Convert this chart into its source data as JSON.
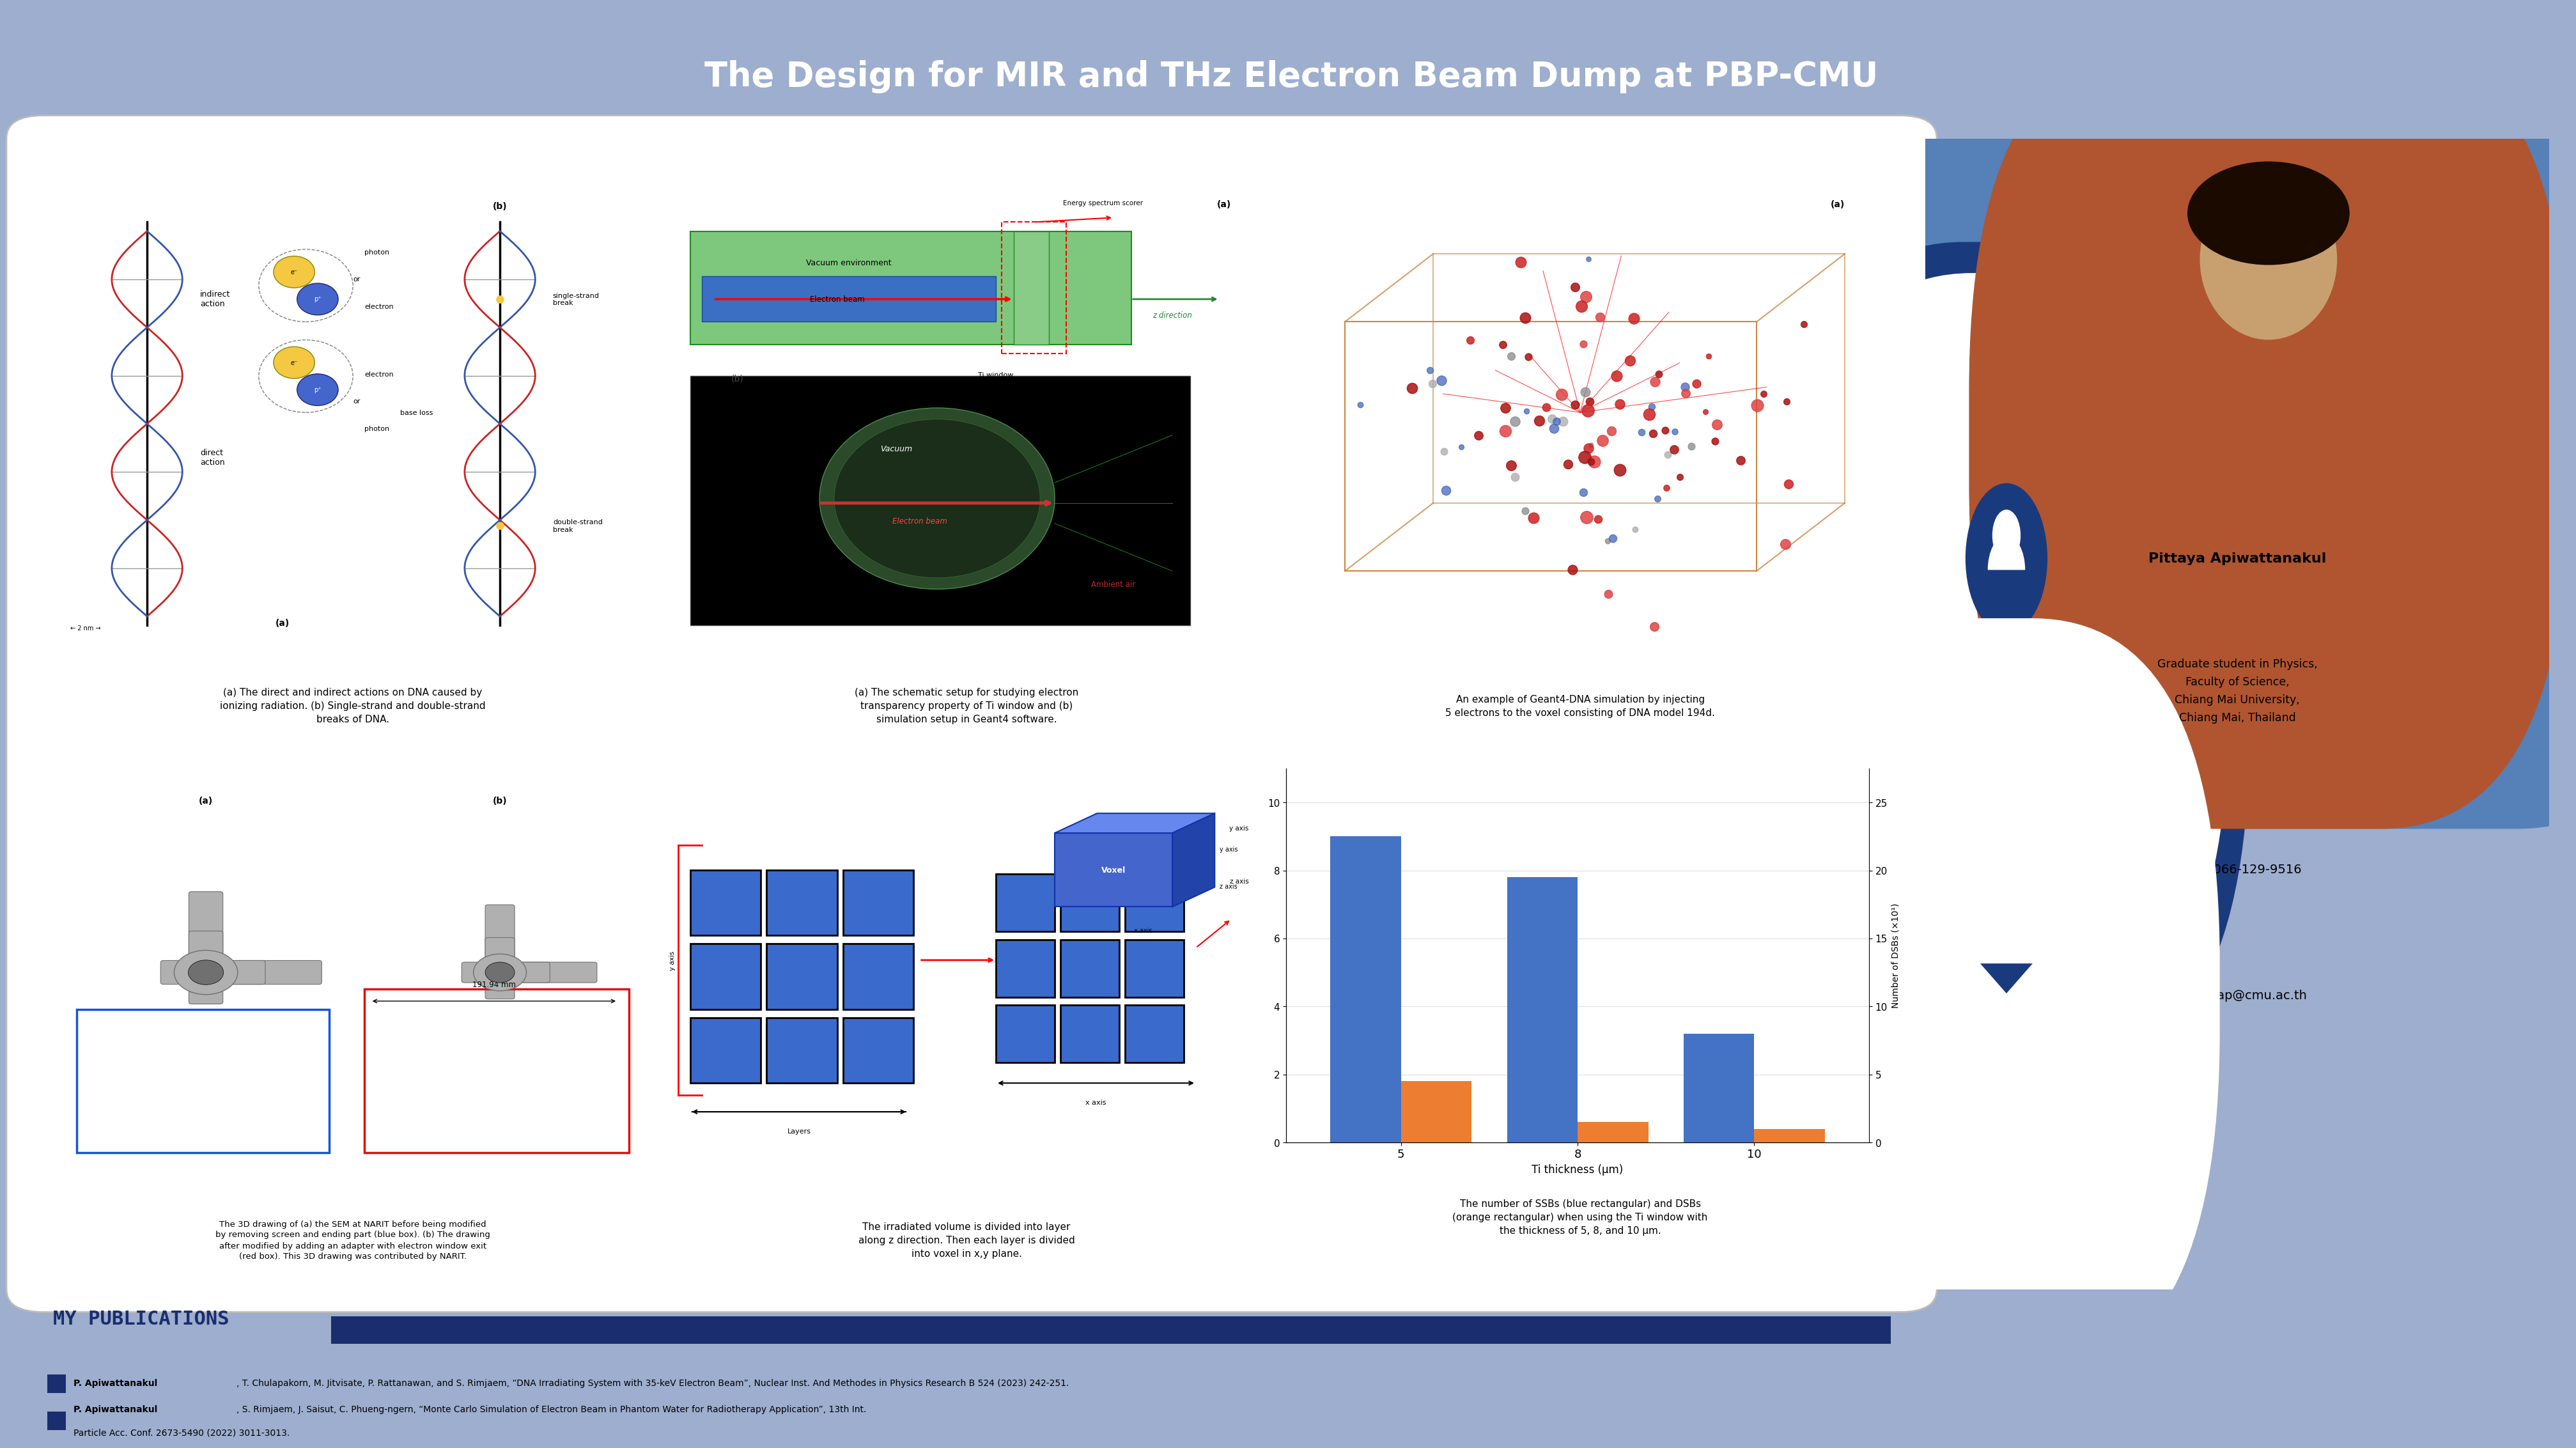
{
  "title": "The Design for MIR and THz Electron Beam Dump at PBP-CMU",
  "title_bg": "#1a2d6e",
  "title_color": "#ffffff",
  "title_fontsize": 38,
  "main_bg": "#9daece",
  "content_bg": "#ffffff",
  "sidebar_bg": "#9daece",
  "section_bar_color": "#1a2d6e",
  "publications_header": "MY PUBLICATIONS",
  "pub1_bold": "P. Apiwattanakul",
  "pub1_rest": ", T. Chulapakorn, M. Jitvisate, P. Rattanawan, and S. Rimjaem, “DNA Irradiating System with 35-keV Electron Beam”, Nuclear Inst. And Methodes in Physics Research B 524 (2023) 242-251.",
  "pub2_bold": "P. Apiwattanakul",
  "pub2_rest": ", S. Rimjaem, J. Saisut, C. Phueng-ngern, “Monte Carlo Simulation of Electron Beam in Phantom Water for Radiotherapy Application”, 13th Int.",
  "pub2_line2": "Particle Acc. Conf. 2673-5490 (2022) 3011-3013.",
  "sidebar_name": "Pittaya Apiwattanakul",
  "sidebar_role": "Graduate student in Physics,\nFaculty of Science,\nChiang Mai University,\nChiang Mai, Thailand",
  "sidebar_phone": "(+66) 066-129-9516",
  "sidebar_email": "pittaya_ap@cmu.ac.th",
  "cap1": "(a) The direct and indirect actions on DNA caused by\nionizing radiation. (b) Single-strand and double-strand\nbreaks of DNA.",
  "cap2": "(a) The schematic setup for studying electron\ntransparency property of Ti window and (b)\nsimulation setup in Geant4 software.",
  "cap3": "An example of Geant4-DNA simulation by injecting\n5 electrons to the voxel consisting of DNA model 194d.",
  "cap4": "The 3D drawing of (a) the SEM at NARIT before being modified\nby removing screen and ending part (blue box). (b) The drawing\nafter modified by adding an adapter with electron window exit\n(red box). This 3D drawing was contributed by NARIT.",
  "cap5": "The irradiated volume is divided into layer\nalong z direction. Then each layer is divided\ninto voxel in x,y plane.",
  "cap6": "The number of SSBs (blue rectangular) and DSBs\n(orange rectangular) when using the Ti window with\nthe thickness of 5, 8, and 10 μm.",
  "bar_x_labels": [
    "5",
    "8",
    "10"
  ],
  "bar_ssb": [
    9.0,
    7.8,
    3.2
  ],
  "bar_dsb": [
    1.8,
    0.6,
    0.4
  ],
  "bar_ssb_color": "#4472c4",
  "bar_dsb_color": "#ed7d31",
  "bar_xlabel": "Ti thickness (μm)",
  "bar_ylabel_right": "Number of DSBs (×10¹)",
  "photo_bg": "#5a7ab5"
}
